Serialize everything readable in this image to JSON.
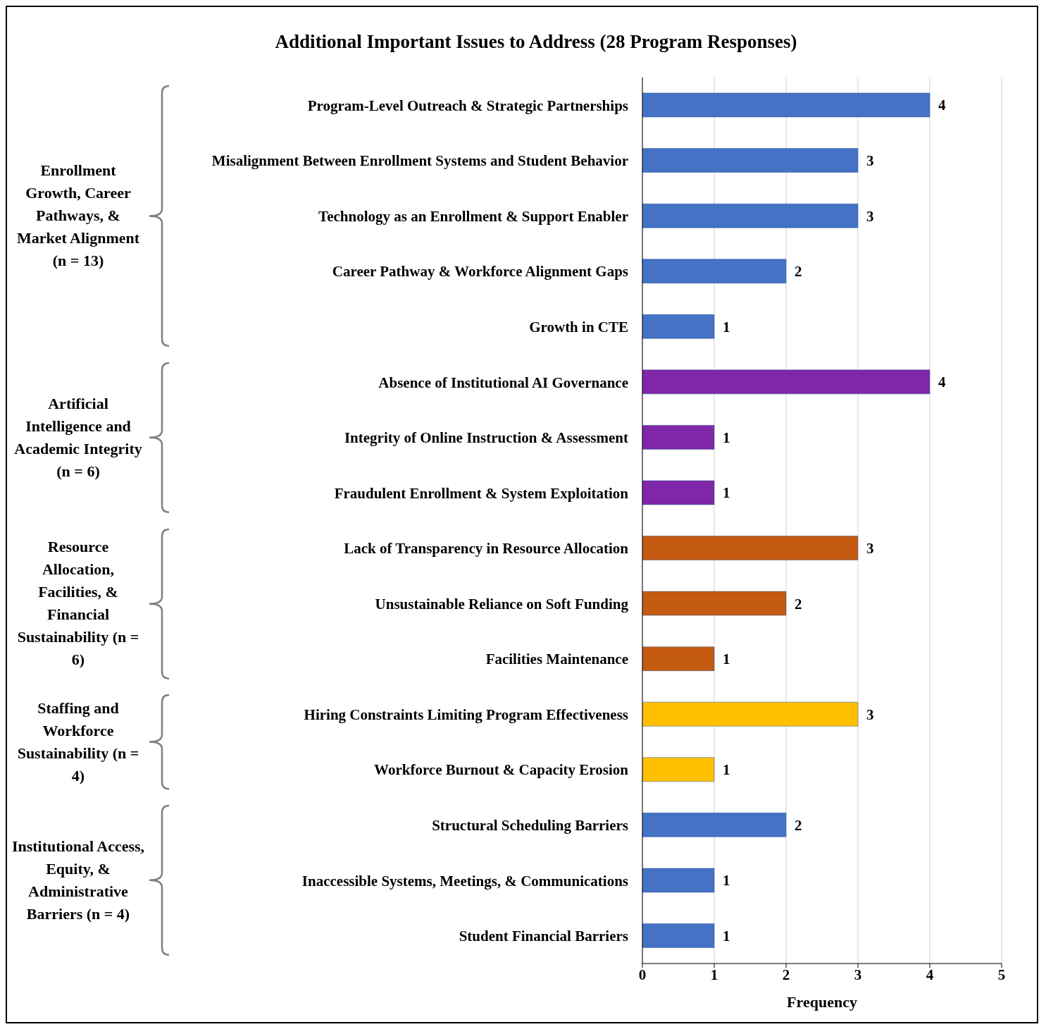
{
  "chart_data": {
    "type": "bar",
    "orientation": "horizontal",
    "title": "Additional Important Issues to Address (28 Program Responses)",
    "xlabel": "Frequency",
    "categories": [
      "Program-Level Outreach & Strategic Partnerships",
      "Misalignment Between Enrollment Systems and Student Behavior",
      "Technology as an Enrollment & Support Enabler",
      "Career Pathway & Workforce Alignment Gaps",
      "Growth in CTE",
      "Absence of Institutional AI Governance",
      "Integrity of Online Instruction & Assessment",
      "Fraudulent Enrollment & System Exploitation",
      "Lack of Transparency in Resource Allocation",
      "Unsustainable Reliance on Soft Funding",
      "Facilities Maintenance",
      "Hiring Constraints Limiting Program Effectiveness",
      "Workforce Burnout & Capacity Erosion",
      "Structural Scheduling Barriers",
      "Inaccessible Systems, Meetings, & Communications",
      "Student Financial Barriers"
    ],
    "values": [
      4,
      3,
      3,
      2,
      1,
      4,
      1,
      1,
      3,
      2,
      1,
      3,
      1,
      2,
      1,
      1
    ],
    "colors": [
      "#4472c4",
      "#4472c4",
      "#4472c4",
      "#4472c4",
      "#4472c4",
      "#7f27a8",
      "#7f27a8",
      "#7f27a8",
      "#c55a11",
      "#c55a11",
      "#c55a11",
      "#ffc000",
      "#ffc000",
      "#4472c4",
      "#4472c4",
      "#4472c4"
    ],
    "data_labels": true,
    "xlim": [
      0,
      5
    ],
    "xticks": [
      0,
      1,
      2,
      3,
      4,
      5
    ],
    "grid": "x",
    "annotations": [
      "Enrollment Growth, Career Pathways, & Market Alignment (n = 13)",
      "Artificial Intelligence and Academic Integrity (n = 6)",
      "Resource Allocation, Facilities, & Financial Sustainability (n = 6)",
      "Staffing and Workforce Sustainability (n = 4)",
      "Institutional Access, Equity, & Administrative Barriers (n = 4)"
    ]
  }
}
